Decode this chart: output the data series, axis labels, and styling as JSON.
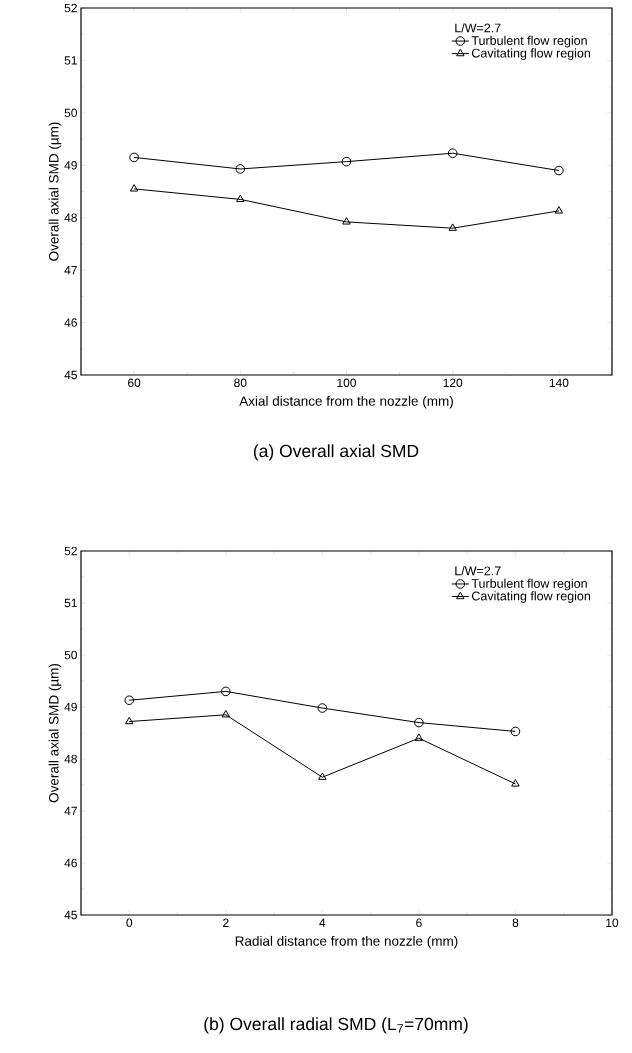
{
  "chart_data": [
    {
      "type": "line",
      "title": "(a) Overall axial SMD",
      "xlabel": "Axial distance from the nozzle (mm)",
      "ylabel": "Overall axial SMD (µm)",
      "legend_title": "L/W=2.7",
      "legend": "top right",
      "x": [
        60,
        80,
        100,
        120,
        140
      ],
      "xlim": [
        50,
        150
      ],
      "xticks": [
        60,
        80,
        100,
        120,
        140
      ],
      "ylim": [
        45,
        52
      ],
      "yticks": [
        45,
        46,
        47,
        48,
        49,
        50,
        51,
        52
      ],
      "grid": false,
      "series": [
        {
          "name": "Turbulent flow region",
          "color": "#000000",
          "marker": "circle",
          "values": [
            49.15,
            48.93,
            49.07,
            49.23,
            48.9
          ]
        },
        {
          "name": "Cavitating flow region",
          "color": "#000000",
          "marker": "triangle",
          "values": [
            48.55,
            48.35,
            47.92,
            47.8,
            48.13
          ]
        }
      ]
    },
    {
      "type": "line",
      "title": "(b) Overall radial SMD (L$_{7}$=70mm)",
      "xlabel": "Radial distance from the nozzle (mm)",
      "ylabel": "Overall axial SMD (µm)",
      "legend_title": "L/W=2.7",
      "legend": "top right",
      "x": [
        0,
        2,
        4,
        6,
        8
      ],
      "xlim": [
        -1,
        10
      ],
      "xticks": [
        0,
        2,
        4,
        6,
        8,
        10
      ],
      "ylim": [
        45,
        52
      ],
      "yticks": [
        45,
        46,
        47,
        48,
        49,
        50,
        51,
        52
      ],
      "grid": false,
      "series": [
        {
          "name": "Turbulent flow region",
          "color": "#000000",
          "marker": "circle",
          "values": [
            49.13,
            49.3,
            48.98,
            48.7,
            48.53
          ]
        },
        {
          "name": "Cavitating flow region",
          "color": "#000000",
          "marker": "triangle",
          "values": [
            48.72,
            48.85,
            47.65,
            48.4,
            47.52
          ]
        }
      ]
    }
  ]
}
